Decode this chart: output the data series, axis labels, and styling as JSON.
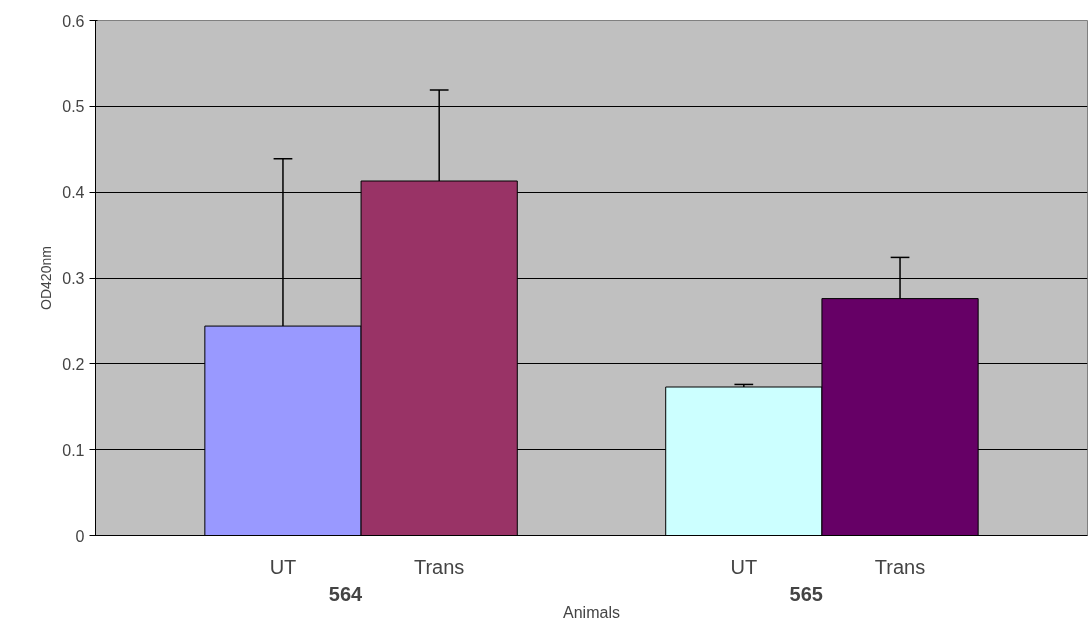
{
  "chart_data": {
    "type": "bar",
    "xlabel": "Animals",
    "ylabel": "OD420nm",
    "categories": [
      "UT",
      "Trans",
      "UT",
      "Trans"
    ],
    "values": [
      0.244,
      0.413,
      0.173,
      0.276
    ],
    "colors": [
      "#9999ff",
      "#993366",
      "#ccffff",
      "#660066"
    ],
    "errors": [
      [
        0.244,
        0.439
      ],
      [
        0.413,
        0.519
      ],
      [
        0.173,
        0.176
      ],
      [
        0.276,
        0.324
      ]
    ],
    "annotations": [
      "564",
      "565"
    ],
    "ylim": [
      0,
      0.6
    ],
    "yticks": [
      0,
      0.1,
      0.2,
      0.3,
      0.4,
      0.5,
      0.6
    ],
    "grid": "y"
  }
}
